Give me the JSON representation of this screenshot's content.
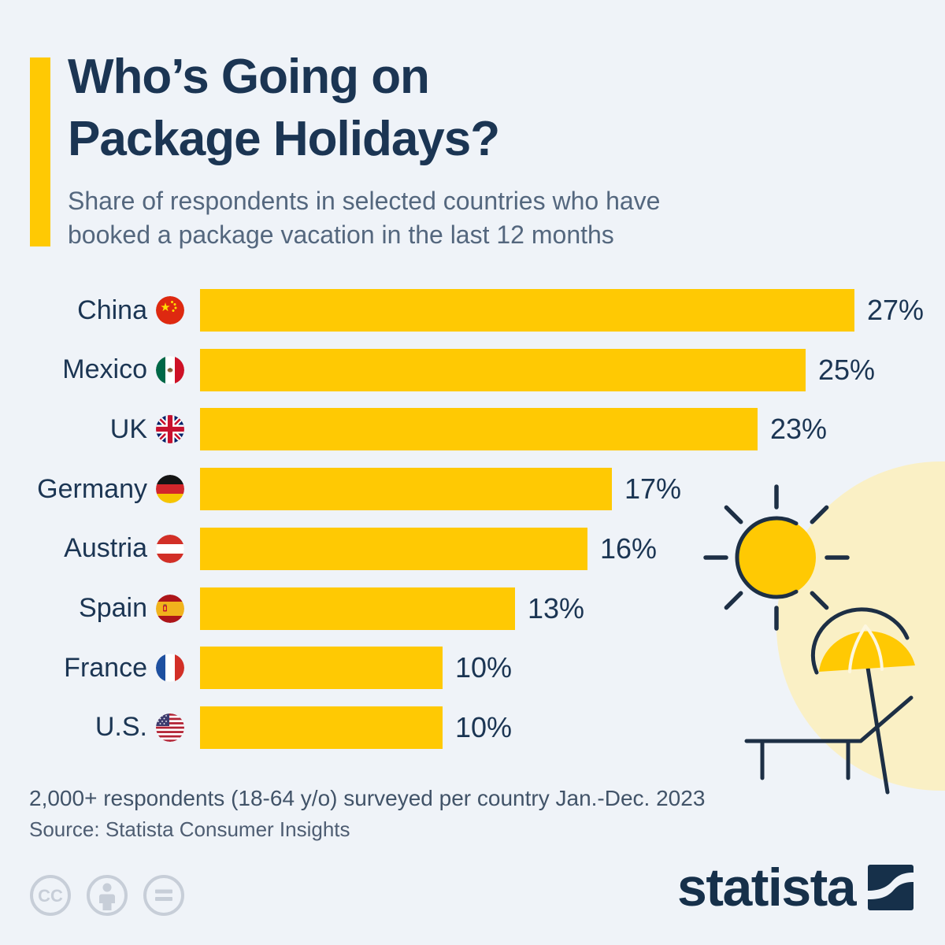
{
  "header": {
    "title_line1": "Who’s Going on",
    "title_line2": "Package Holidays?",
    "subtitle_line1": "Share of respondents in selected countries who have",
    "subtitle_line2": "booked a package vacation in the last 12 months"
  },
  "chart_data": {
    "type": "bar",
    "orientation": "horizontal",
    "title": "Who’s Going on Package Holidays?",
    "subtitle": "Share of respondents in selected countries who have booked a package vacation in the last 12 months",
    "categories": [
      "China",
      "Mexico",
      "UK",
      "Germany",
      "Austria",
      "Spain",
      "France",
      "U.S."
    ],
    "values": [
      27,
      25,
      23,
      17,
      16,
      13,
      10,
      10
    ],
    "value_labels": [
      "27%",
      "25%",
      "23%",
      "17%",
      "16%",
      "13%",
      "10%",
      "10%"
    ],
    "flag_icons": [
      "flag-china",
      "flag-mexico",
      "flag-uk",
      "flag-germany",
      "flag-austria",
      "flag-spain",
      "flag-france",
      "flag-us"
    ],
    "unit": "%",
    "xlim": [
      0,
      27
    ],
    "grid": false,
    "legend": false,
    "bar_color": "#ffc903"
  },
  "footer": {
    "footnote": "2,000+ respondents (18-64 y/o) surveyed per country Jan.-Dec. 2023",
    "source": "Source: Statista Consumer Insights"
  },
  "branding": {
    "wordmark": "statista"
  },
  "license": {
    "icons": [
      "cc-icon",
      "attribution-icon",
      "no-derivatives-icon"
    ]
  },
  "decoration": {
    "items": [
      "pale-circle",
      "sun",
      "beach-umbrella",
      "deck-chair"
    ]
  },
  "colors": {
    "background": "#eff3f8",
    "accent_yellow": "#ffc903",
    "pale_yellow": "#faf0c5",
    "navy_text": "#1b3553",
    "subtitle_slate": "#54677e",
    "footnote_gray": "#415368",
    "source_gray": "#4e5d72",
    "license_gray": "#c7ced8",
    "logo_navy": "#16304a",
    "illustration_line": "#1d2f45"
  }
}
